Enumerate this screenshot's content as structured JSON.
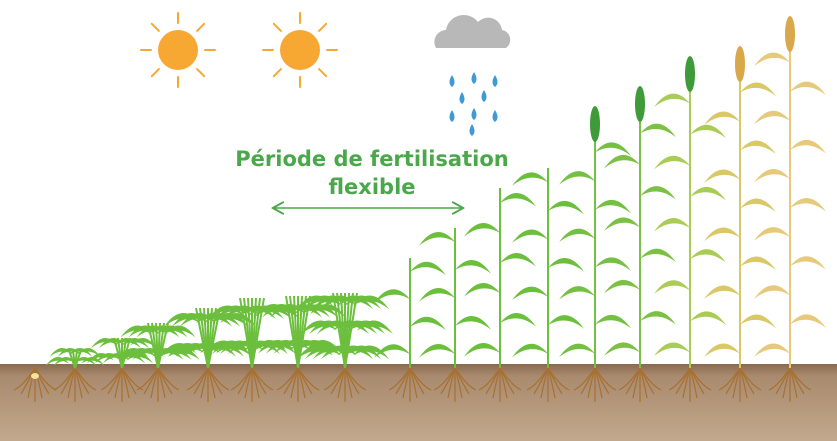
{
  "annotation": {
    "lines": [
      "Période de fertilisation",
      "flexible"
    ]
  }
}
